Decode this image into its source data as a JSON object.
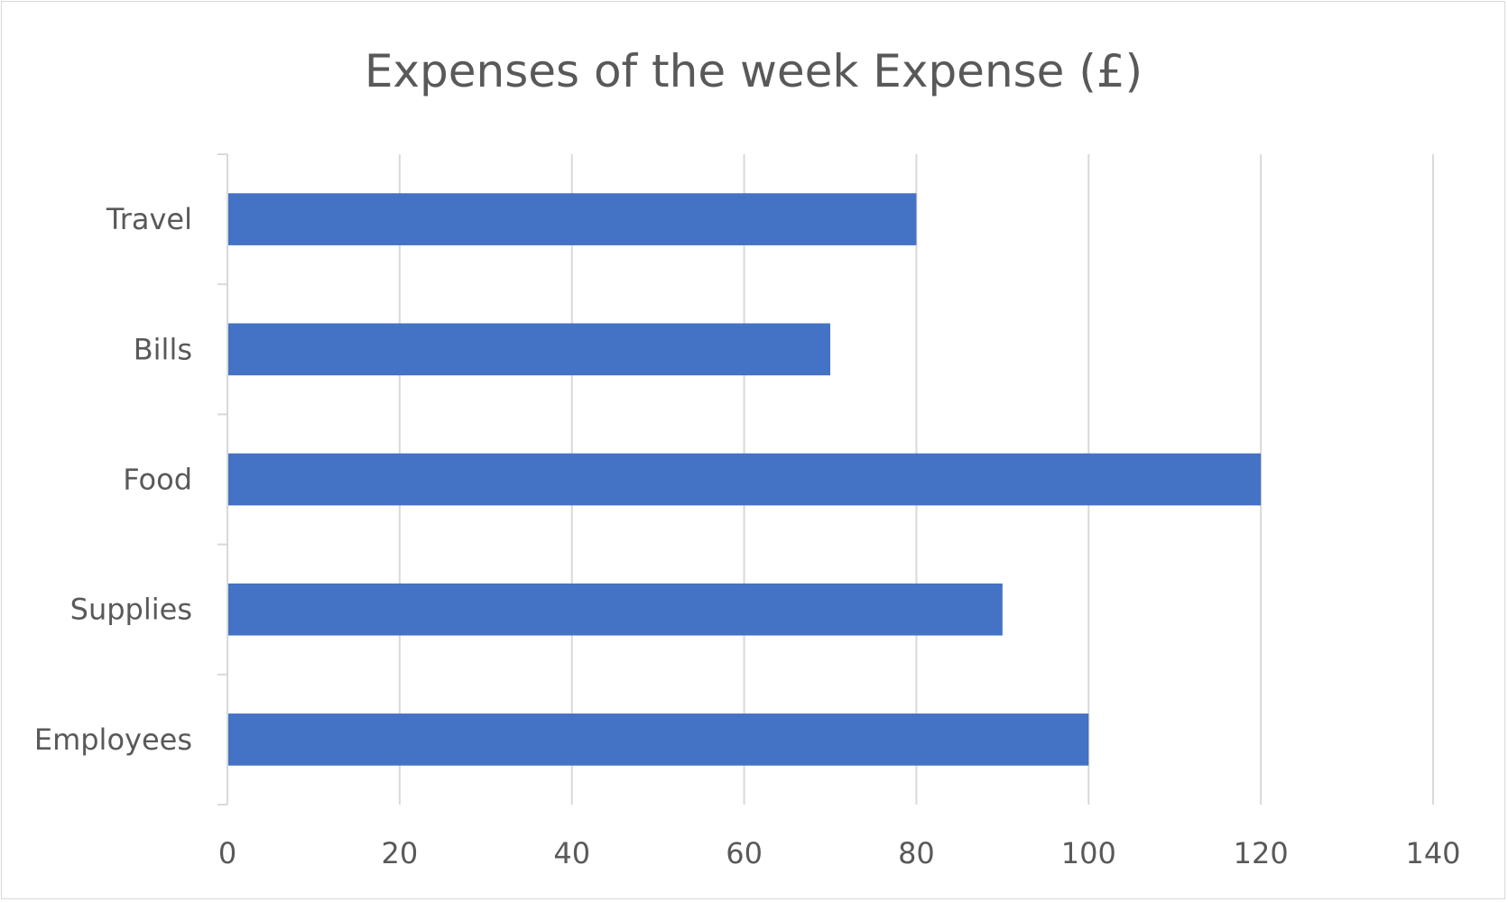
{
  "chart_data": {
    "type": "bar",
    "orientation": "horizontal",
    "title": "Expenses of the week Expense (£)",
    "categories": [
      "Employees",
      "Supplies",
      "Food",
      "Bills",
      "Travel"
    ],
    "series": [
      {
        "values": [
          100,
          90,
          120,
          70,
          80
        ],
        "color": "#4472c4"
      }
    ],
    "xlim": [
      0,
      140
    ],
    "xticks": [
      0,
      20,
      40,
      60,
      80,
      100,
      120,
      140
    ],
    "tick_labels": [
      "0",
      "20",
      "40",
      "60",
      "80",
      "100",
      "120",
      "140"
    ],
    "grid": "vertical",
    "legend": "none",
    "gridline_color": "#d9d9d9",
    "text_color": "#595959"
  }
}
